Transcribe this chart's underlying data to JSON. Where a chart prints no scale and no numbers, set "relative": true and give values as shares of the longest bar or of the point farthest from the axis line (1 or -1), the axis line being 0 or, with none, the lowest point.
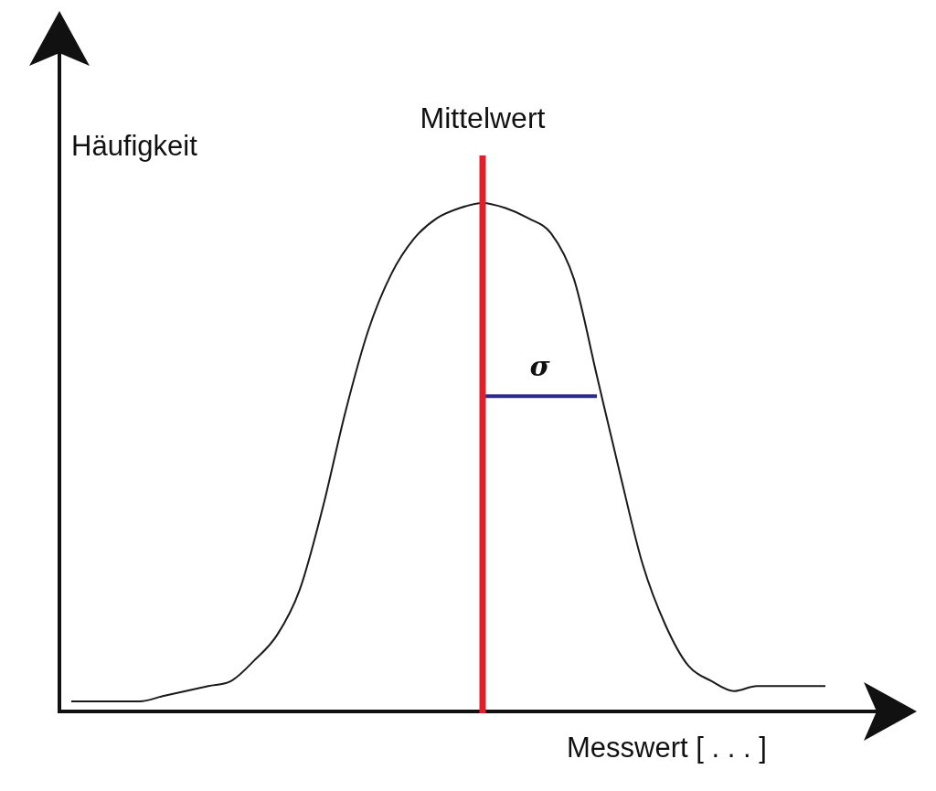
{
  "chart_data": {
    "type": "line",
    "relative": true,
    "xlabel": "Messwert [ . . . ]",
    "ylabel": "Häufigkeit",
    "categories": [
      null,
      null,
      null,
      null,
      null,
      null,
      null,
      null,
      null,
      null,
      null,
      null,
      null,
      null,
      null,
      null,
      null,
      null,
      null,
      null,
      null,
      null,
      null,
      null,
      null,
      null,
      null,
      null,
      null,
      null,
      null,
      null,
      null,
      null
    ],
    "series": [
      {
        "color": "#1a1a1a",
        "values": [
          0.02,
          0.02,
          0.02,
          0.02,
          0.03,
          0.04,
          0.05,
          0.06,
          0.1,
          0.15,
          0.24,
          0.4,
          0.59,
          0.75,
          0.86,
          0.93,
          0.97,
          0.99,
          1,
          0.99,
          0.97,
          0.94,
          0.85,
          0.66,
          0.47,
          0.29,
          0.17,
          0.09,
          0.06,
          0.04,
          0.05,
          0.05,
          0.05,
          0.05
        ]
      },
      {
        "name": "σ",
        "color": "#2b2b8c",
        "values": [
          null,
          null,
          null,
          null,
          null,
          null,
          null,
          null,
          null,
          null,
          null,
          null,
          null,
          null,
          null,
          null,
          null,
          null,
          0.62,
          null,
          null,
          null,
          null,
          0.62,
          null,
          null,
          null,
          null,
          null,
          null,
          null,
          null,
          null,
          null
        ]
      }
    ],
    "annotations": [
      "Mittelwert"
    ],
    "legend": false,
    "tick_labels": false,
    "marker": "none"
  }
}
